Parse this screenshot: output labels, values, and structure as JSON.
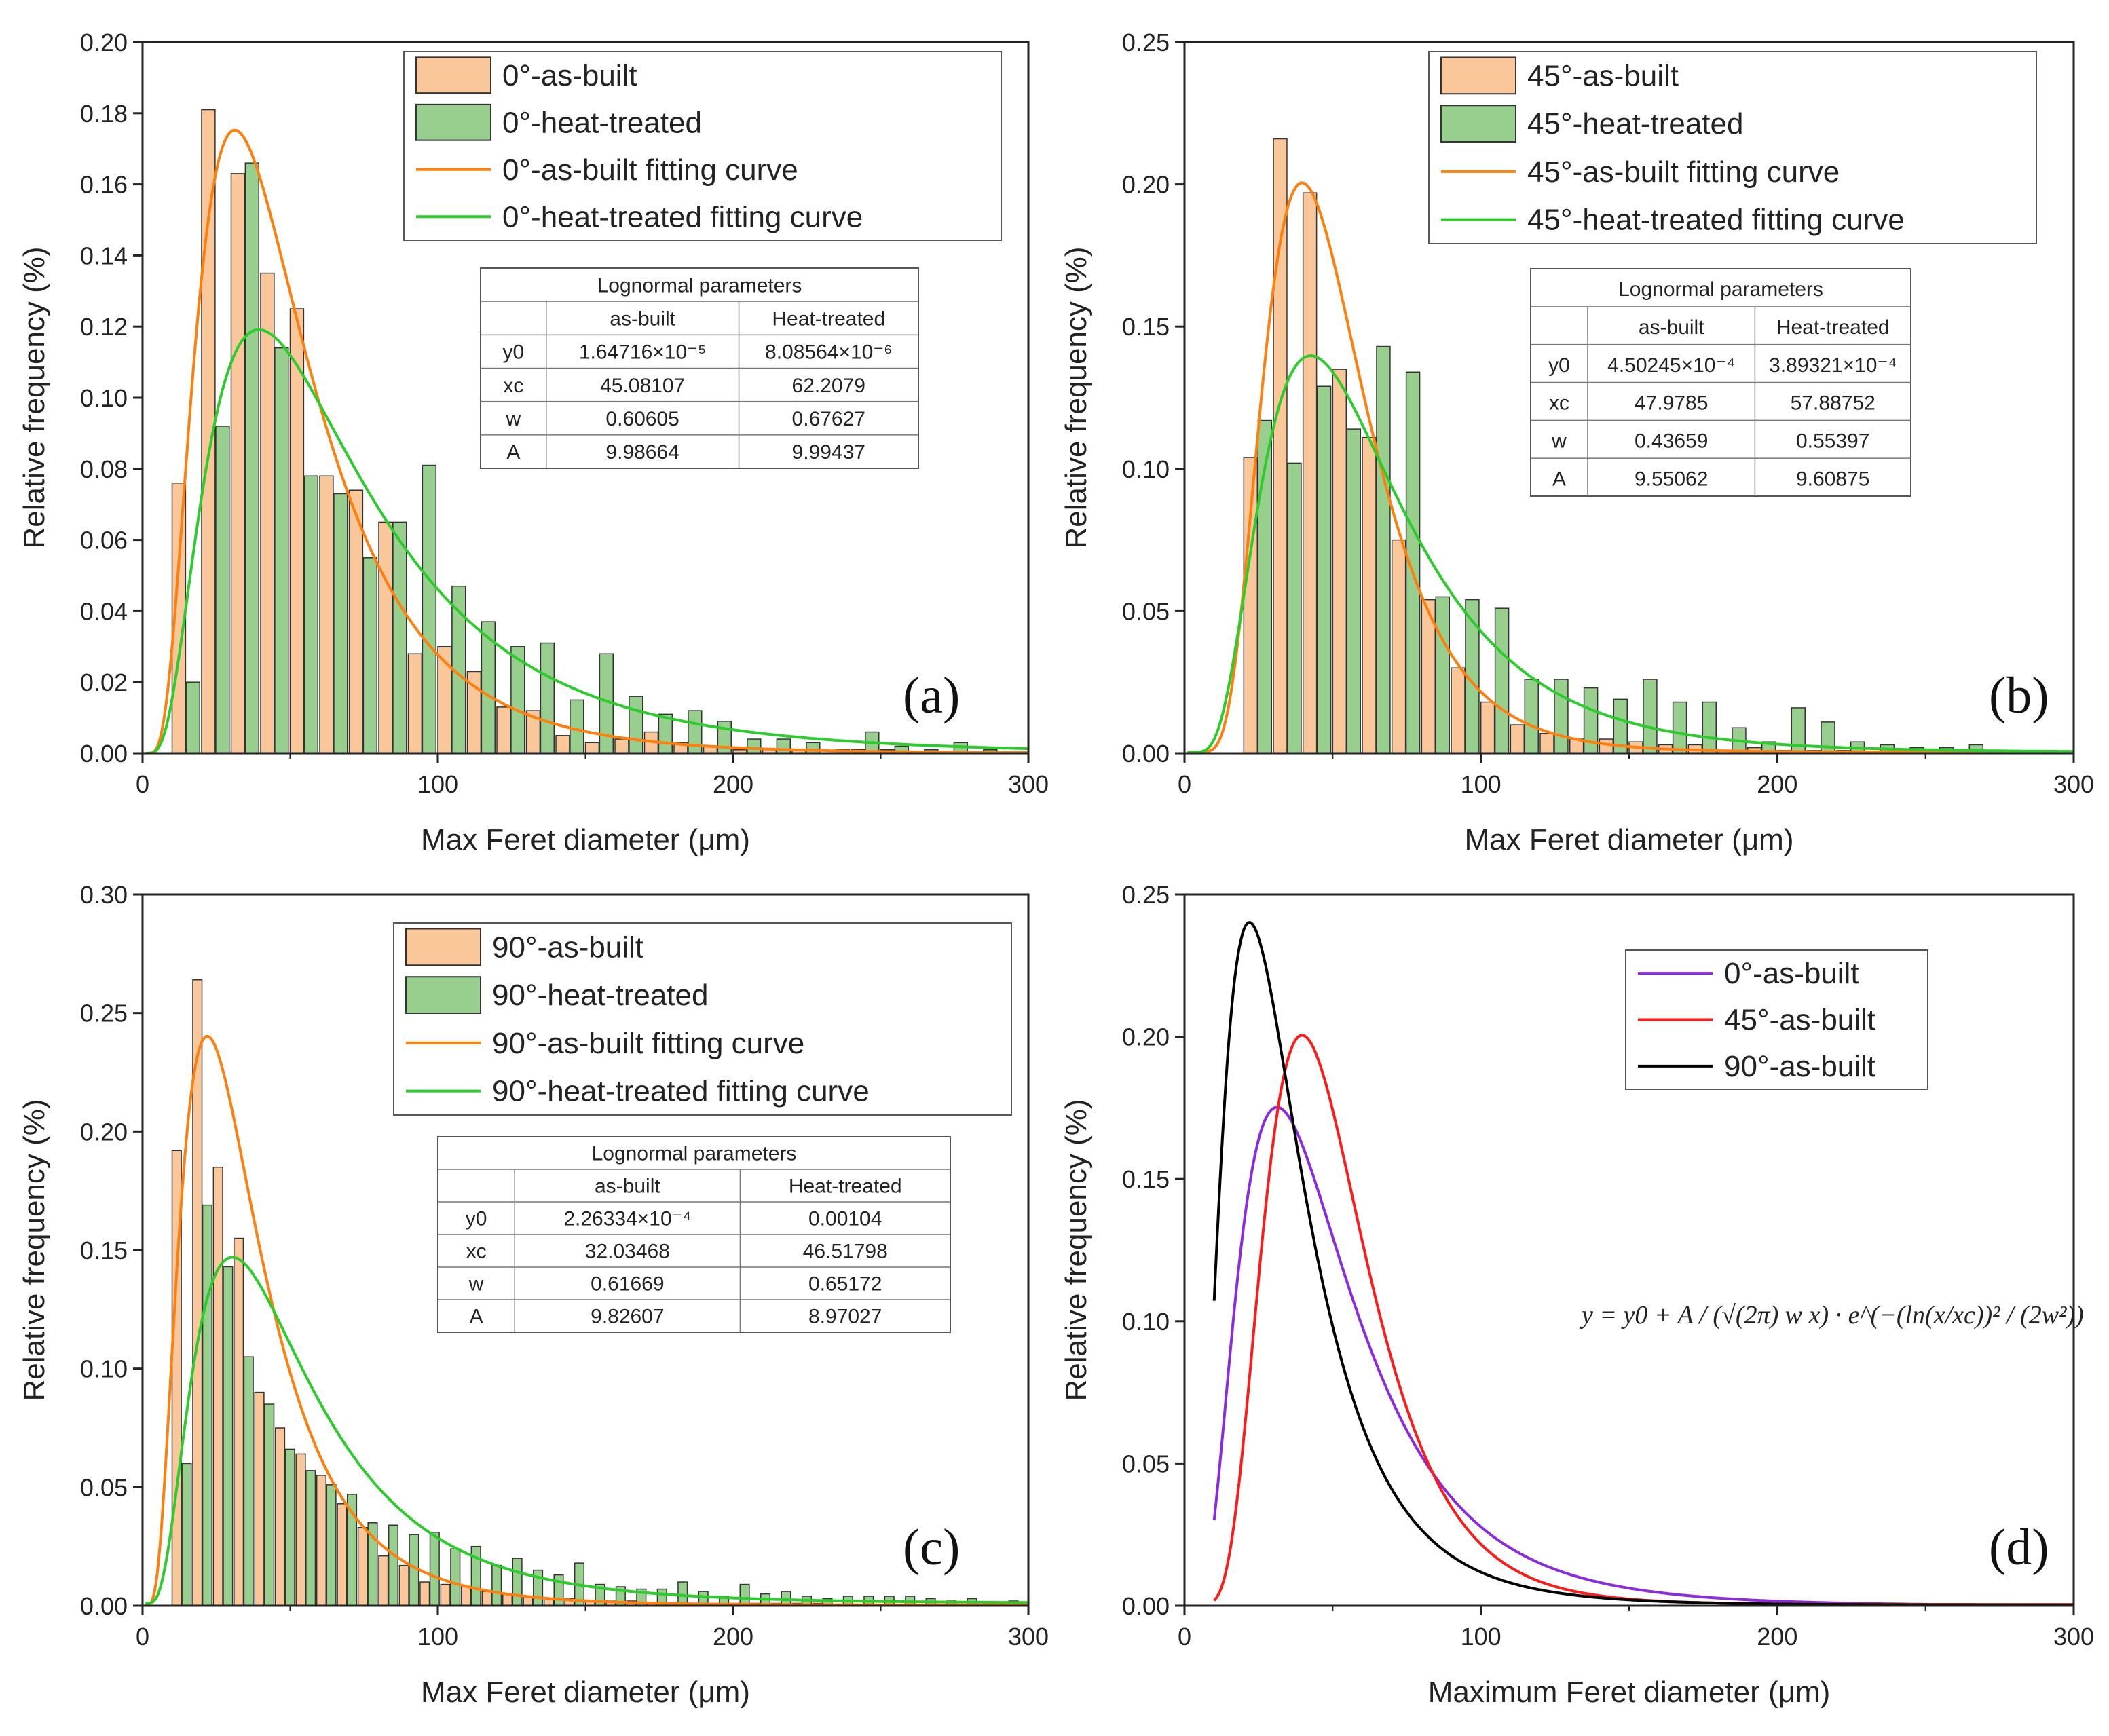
{
  "figure_title": "Lognormal size distributions of maximum Feret diameter",
  "chart_data": [
    {
      "panel": "a",
      "type": "bar",
      "panel_letter": "(a)",
      "xlabel": "Max Feret diameter (μm)",
      "ylabel": "Relative frequency (%)",
      "xlim": [
        0,
        300
      ],
      "ylim": [
        0,
        0.2
      ],
      "x_ticks": [
        0,
        100,
        200,
        300
      ],
      "y_ticks": [
        0.0,
        0.02,
        0.04,
        0.06,
        0.08,
        0.1,
        0.12,
        0.14,
        0.16,
        0.18,
        0.2
      ],
      "bin_width": 10,
      "series": [
        {
          "name": "0°-as-built",
          "color": "#f9c79a",
          "x": [
            10,
            20,
            30,
            40,
            50,
            60,
            70,
            80,
            90,
            100,
            110,
            120,
            130,
            140,
            150,
            160,
            170,
            180,
            190,
            200,
            210,
            220,
            230,
            240,
            250,
            260,
            270,
            280,
            290
          ],
          "values": [
            0.076,
            0.181,
            0.163,
            0.135,
            0.125,
            0.078,
            0.074,
            0.065,
            0.028,
            0.03,
            0.023,
            0.013,
            0.012,
            0.005,
            0.003,
            0.004,
            0.006,
            0.003,
            0.002,
            0.001,
            0.001,
            0.001,
            0.0,
            0.001,
            0.001,
            0.0,
            0.0,
            0.0,
            0.0
          ]
        },
        {
          "name": "0°-heat-treated",
          "color": "#98cf8f",
          "x": [
            10,
            20,
            30,
            40,
            50,
            60,
            70,
            80,
            90,
            100,
            110,
            120,
            130,
            140,
            150,
            160,
            170,
            180,
            190,
            200,
            210,
            220,
            230,
            240,
            250,
            260,
            270,
            280,
            290
          ],
          "values": [
            0.02,
            0.092,
            0.166,
            0.114,
            0.078,
            0.073,
            0.055,
            0.065,
            0.081,
            0.047,
            0.037,
            0.03,
            0.031,
            0.015,
            0.028,
            0.016,
            0.011,
            0.012,
            0.009,
            0.004,
            0.004,
            0.003,
            0.001,
            0.006,
            0.002,
            0.001,
            0.003,
            0.001,
            0.0
          ]
        }
      ],
      "fit_curves": [
        {
          "name": "0°-as-built fitting curve",
          "color": "#ff7f0e",
          "y0": 1.64716e-05,
          "xc": 45.08107,
          "w": 0.60605,
          "A": 9.98664
        },
        {
          "name": "0°-heat-treated fitting curve",
          "color": "#2dcc2d",
          "y0": 8.08564e-06,
          "xc": 62.2079,
          "w": 0.67627,
          "A": 9.99437
        }
      ],
      "legend": [
        "0°-as-built",
        "0°-heat-treated",
        "0°-as-built fitting curve",
        "0°-heat-treated fitting curve"
      ],
      "legend_position": "top-right",
      "table": {
        "title": "Lognormal parameters",
        "headers": [
          "",
          "as-built",
          "Heat-treated"
        ],
        "rows": [
          [
            "y0",
            "1.64716×10⁻⁵",
            "8.08564×10⁻⁶"
          ],
          [
            "xc",
            "45.08107",
            "62.2079"
          ],
          [
            "w",
            "0.60605",
            "0.67627"
          ],
          [
            "A",
            "9.98664",
            "9.99437"
          ]
        ]
      }
    },
    {
      "panel": "b",
      "type": "bar",
      "panel_letter": "(b)",
      "xlabel": "Max Feret diameter (μm)",
      "ylabel": "Relative frequency (%)",
      "xlim": [
        0,
        300
      ],
      "ylim": [
        0,
        0.25
      ],
      "x_ticks": [
        0,
        100,
        200,
        300
      ],
      "y_ticks": [
        0.0,
        0.05,
        0.1,
        0.15,
        0.2,
        0.25
      ],
      "bin_width": 10,
      "series": [
        {
          "name": "45°-as-built",
          "color": "#f9c79a",
          "x": [
            20,
            30,
            40,
            50,
            60,
            70,
            80,
            90,
            100,
            110,
            120,
            130,
            140,
            150,
            160,
            170,
            180,
            190,
            200,
            210,
            220,
            230,
            240,
            250,
            260,
            270,
            280,
            290
          ],
          "values": [
            0.104,
            0.216,
            0.197,
            0.135,
            0.111,
            0.075,
            0.054,
            0.03,
            0.018,
            0.01,
            0.007,
            0.005,
            0.005,
            0.004,
            0.003,
            0.003,
            0.001,
            0.002,
            0.001,
            0.001,
            0.001,
            0.0,
            0.0,
            0.0,
            0.0,
            0.0,
            0.0,
            0.0
          ]
        },
        {
          "name": "45°-heat-treated",
          "color": "#98cf8f",
          "x": [
            20,
            30,
            40,
            50,
            60,
            70,
            80,
            90,
            100,
            110,
            120,
            130,
            140,
            150,
            160,
            170,
            180,
            190,
            200,
            210,
            220,
            230,
            240,
            250,
            260,
            270,
            280,
            290
          ],
          "values": [
            0.117,
            0.102,
            0.129,
            0.114,
            0.143,
            0.134,
            0.055,
            0.054,
            0.051,
            0.026,
            0.026,
            0.023,
            0.019,
            0.026,
            0.018,
            0.018,
            0.009,
            0.004,
            0.016,
            0.011,
            0.004,
            0.003,
            0.002,
            0.002,
            0.003,
            0.0,
            0.0,
            0.0
          ]
        }
      ],
      "fit_curves": [
        {
          "name": "45°-as-built fitting curve",
          "color": "#ff7f0e",
          "y0": 0.000450245,
          "xc": 47.9785,
          "w": 0.43659,
          "A": 9.55062
        },
        {
          "name": "45°-heat-treated fitting curve",
          "color": "#2dcc2d",
          "y0": 0.000389321,
          "xc": 57.88752,
          "w": 0.55397,
          "A": 9.60875
        }
      ],
      "legend": [
        "45°-as-built",
        "45°-heat-treated",
        "45°-as-built fitting curve",
        "45°-heat-treated fitting curve"
      ],
      "legend_position": "top-right",
      "table": {
        "title": "Lognormal parameters",
        "headers": [
          "",
          "as-built",
          "Heat-treated"
        ],
        "rows": [
          [
            "y0",
            "4.50245×10⁻⁴",
            "3.89321×10⁻⁴"
          ],
          [
            "xc",
            "47.9785",
            "57.88752"
          ],
          [
            "w",
            "0.43659",
            "0.55397"
          ],
          [
            "A",
            "9.55062",
            "9.60875"
          ]
        ]
      }
    },
    {
      "panel": "c",
      "type": "bar",
      "panel_letter": "(c)",
      "xlabel": "Max Feret diameter (μm)",
      "ylabel": "Relative frequency (%)",
      "xlim": [
        0,
        300
      ],
      "ylim": [
        0,
        0.3
      ],
      "x_ticks": [
        0,
        100,
        200,
        300
      ],
      "y_ticks": [
        0.0,
        0.05,
        0.1,
        0.15,
        0.2,
        0.25,
        0.3
      ],
      "bin_width": 7,
      "series": [
        {
          "name": "90°-as-built",
          "color": "#f9c79a",
          "x": [
            10,
            17,
            24,
            31,
            38,
            45,
            52,
            59,
            66,
            73,
            80,
            87,
            94,
            101,
            108,
            115,
            122,
            129,
            136,
            143,
            150,
            157,
            164,
            171,
            178,
            185,
            192,
            199,
            206,
            213,
            220,
            227,
            234,
            241,
            248,
            255,
            262,
            269,
            276,
            283,
            290
          ],
          "values": [
            0.192,
            0.264,
            0.185,
            0.155,
            0.09,
            0.075,
            0.064,
            0.055,
            0.043,
            0.033,
            0.021,
            0.017,
            0.01,
            0.009,
            0.008,
            0.006,
            0.005,
            0.004,
            0.003,
            0.003,
            0.002,
            0.002,
            0.002,
            0.001,
            0.001,
            0.001,
            0.001,
            0.001,
            0.001,
            0.001,
            0.001,
            0.001,
            0.0,
            0.0,
            0.0,
            0.0,
            0.0,
            0.0,
            0.0,
            0.0,
            0.0
          ]
        },
        {
          "name": "90°-heat-treated",
          "color": "#98cf8f",
          "x": [
            10,
            17,
            24,
            31,
            38,
            45,
            52,
            59,
            66,
            73,
            80,
            87,
            94,
            101,
            108,
            115,
            122,
            129,
            136,
            143,
            150,
            157,
            164,
            171,
            178,
            185,
            192,
            199,
            206,
            213,
            220,
            227,
            234,
            241,
            248,
            255,
            262,
            269,
            276,
            283,
            290
          ],
          "values": [
            0.06,
            0.169,
            0.143,
            0.105,
            0.085,
            0.066,
            0.057,
            0.051,
            0.047,
            0.035,
            0.034,
            0.03,
            0.031,
            0.024,
            0.025,
            0.017,
            0.02,
            0.015,
            0.013,
            0.018,
            0.009,
            0.008,
            0.007,
            0.007,
            0.01,
            0.006,
            0.004,
            0.009,
            0.005,
            0.006,
            0.004,
            0.003,
            0.004,
            0.004,
            0.004,
            0.004,
            0.003,
            0.002,
            0.003,
            0.001,
            0.002
          ]
        }
      ],
      "fit_curves": [
        {
          "name": "90°-as-built fitting curve",
          "color": "#ff7f0e",
          "y0": 0.000226334,
          "xc": 32.03468,
          "w": 0.61669,
          "A": 9.82607
        },
        {
          "name": "90°-heat-treated fitting curve",
          "color": "#2dcc2d",
          "y0": 0.00104,
          "xc": 46.51798,
          "w": 0.65172,
          "A": 8.97027
        }
      ],
      "legend": [
        "90°-as-built",
        "90°-heat-treated",
        "90°-as-built fitting curve",
        "90°-heat-treated fitting curve"
      ],
      "legend_position": "top-right",
      "table": {
        "title": "Lognormal parameters",
        "headers": [
          "",
          "as-built",
          "Heat-treated"
        ],
        "rows": [
          [
            "y0",
            "2.26334×10⁻⁴",
            "0.00104"
          ],
          [
            "xc",
            "32.03468",
            "46.51798"
          ],
          [
            "w",
            "0.61669",
            "0.65172"
          ],
          [
            "A",
            "9.82607",
            "8.97027"
          ]
        ]
      }
    },
    {
      "panel": "d",
      "type": "line",
      "panel_letter": "(d)",
      "xlabel": "Maximum Feret diameter (μm)",
      "ylabel": "Relative frequency (%)",
      "xlim": [
        0,
        300
      ],
      "ylim": [
        0,
        0.25
      ],
      "x_ticks": [
        0,
        100,
        200,
        300
      ],
      "y_ticks": [
        0.0,
        0.05,
        0.1,
        0.15,
        0.2,
        0.25
      ],
      "fit_curves": [
        {
          "name": "0°-as-built",
          "color": "#8a2be2",
          "y0": 1.64716e-05,
          "xc": 45.08107,
          "w": 0.60605,
          "A": 9.98664,
          "x_start": 10
        },
        {
          "name": "45°-as-built",
          "color": "#ff1a1a",
          "y0": 0.000450245,
          "xc": 47.9785,
          "w": 0.43659,
          "A": 9.55062,
          "x_start": 10
        },
        {
          "name": "90°-as-built",
          "color": "#000000",
          "y0": 0.000226334,
          "xc": 32.03468,
          "w": 0.61669,
          "A": 9.82607,
          "x_start": 10
        }
      ],
      "legend": [
        "0°-as-built",
        "45°-as-built",
        "90°-as-built"
      ],
      "legend_position": "top-right",
      "formula": "y = y0 + A / (√(2π) w x) · e^(−(ln(x/xc))² / (2w²))"
    }
  ]
}
